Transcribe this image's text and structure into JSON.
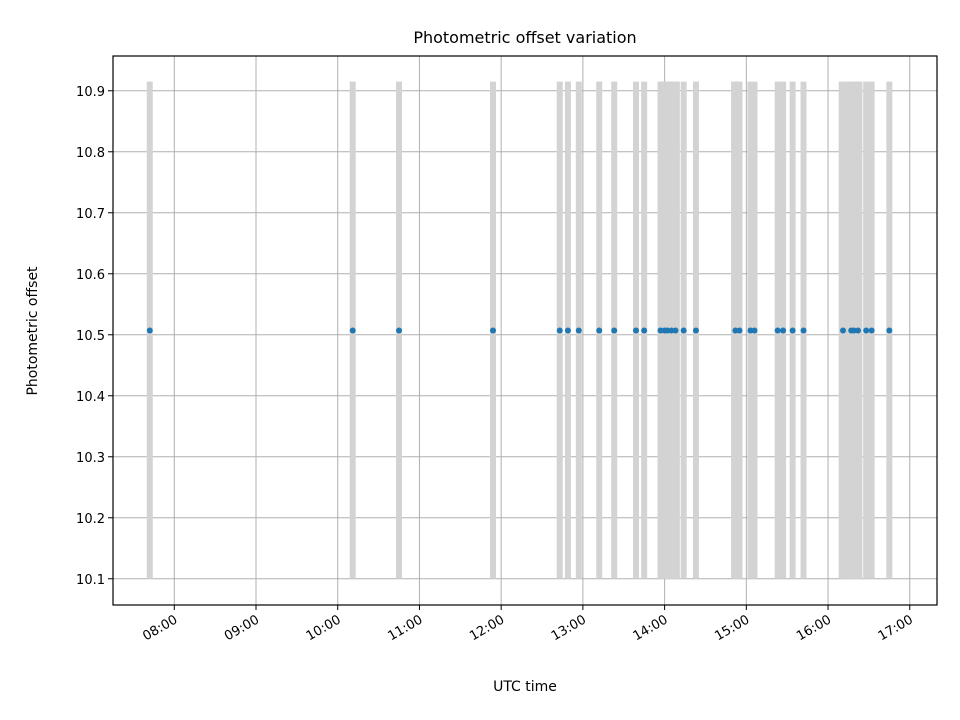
{
  "chart_data": {
    "type": "scatter",
    "title": "Photometric offset variation",
    "xlabel": "UTC time",
    "ylabel": "Photometric offset",
    "xlim": [
      "07:15",
      "17:20"
    ],
    "ylim": [
      10.057,
      10.957
    ],
    "x_ticks": [
      "08:00",
      "09:00",
      "10:00",
      "11:00",
      "12:00",
      "13:00",
      "14:00",
      "15:00",
      "16:00",
      "17:00"
    ],
    "y_ticks": [
      10.1,
      10.2,
      10.3,
      10.4,
      10.5,
      10.6,
      10.7,
      10.8,
      10.9
    ],
    "y_tick_labels": [
      "10.1",
      "10.2",
      "10.3",
      "10.4",
      "10.5",
      "10.6",
      "10.7",
      "10.8",
      "10.9"
    ],
    "grid": true,
    "x_tick_rotation_deg": 30,
    "series": [
      {
        "marker": "dot",
        "color": "#1f77b4",
        "x": [
          "07:42",
          "10:11",
          "10:45",
          "11:54",
          "12:43",
          "12:49",
          "12:57",
          "13:12",
          "13:23",
          "13:39",
          "13:45",
          "13:57",
          "14:00",
          "14:02",
          "14:05",
          "14:08",
          "14:14",
          "14:23",
          "14:52",
          "14:55",
          "15:03",
          "15:06",
          "15:23",
          "15:27",
          "15:34",
          "15:42",
          "16:11",
          "16:17",
          "16:19",
          "16:22",
          "16:28",
          "16:32",
          "16:45"
        ],
        "y": [
          10.507,
          10.507,
          10.507,
          10.507,
          10.507,
          10.507,
          10.507,
          10.507,
          10.507,
          10.507,
          10.507,
          10.507,
          10.507,
          10.507,
          10.507,
          10.507,
          10.507,
          10.507,
          10.507,
          10.507,
          10.507,
          10.507,
          10.507,
          10.507,
          10.507,
          10.507,
          10.507,
          10.507,
          10.507,
          10.507,
          10.507,
          10.507,
          10.507
        ]
      }
    ],
    "vertical_spans": {
      "color": "#d3d3d3",
      "y_range": [
        10.1,
        10.915
      ],
      "x": [
        "07:42",
        "10:11",
        "10:45",
        "11:54",
        "12:43",
        "12:49",
        "12:57",
        "13:12",
        "13:23",
        "13:39",
        "13:45",
        "13:57",
        "13:59",
        "14:00",
        "14:01",
        "14:02",
        "14:03",
        "14:04",
        "14:05",
        "14:06",
        "14:07",
        "14:08",
        "14:09",
        "14:14",
        "14:23",
        "14:51",
        "14:53",
        "14:55",
        "15:03",
        "15:06",
        "15:23",
        "15:27",
        "15:34",
        "15:42",
        "16:10",
        "16:12",
        "16:16",
        "16:18",
        "16:19",
        "16:21",
        "16:22",
        "16:23",
        "16:28",
        "16:32",
        "16:45"
      ]
    }
  }
}
